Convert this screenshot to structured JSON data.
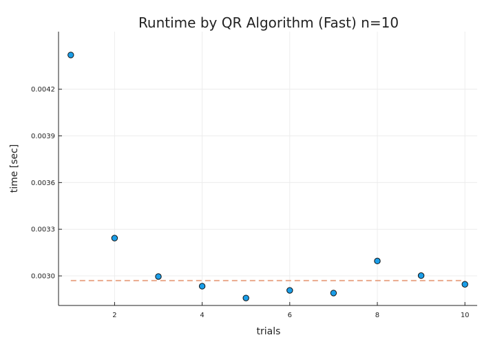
{
  "chart_data": {
    "type": "scatter",
    "title": "Runtime by QR Algorithm (Fast)  n=10",
    "xlabel": "trials",
    "ylabel": "time [sec]",
    "x": [
      1,
      2,
      3,
      4,
      5,
      6,
      7,
      8,
      9,
      10
    ],
    "y": [
      0.00442,
      0.003243,
      0.002996,
      0.002934,
      0.002858,
      0.002907,
      0.00289,
      0.003096,
      0.003002,
      0.002946
    ],
    "xlim": [
      0.72,
      10.28
    ],
    "ylim": [
      0.00281,
      0.00457
    ],
    "xticks": [
      2,
      4,
      6,
      8,
      10
    ],
    "xtick_labels": [
      "2",
      "4",
      "6",
      "8",
      "10"
    ],
    "yticks": [
      0.003,
      0.0033,
      0.0036,
      0.0039,
      0.0042
    ],
    "ytick_labels": [
      "0.0030",
      "0.0033",
      "0.0036",
      "0.0039",
      "0.0042"
    ],
    "mean_line": {
      "x_start": 1,
      "x_end": 10,
      "y": 0.00297
    },
    "grid": true,
    "legend": "none",
    "colors": {
      "points": "#1b9ee8",
      "point_edge": "#111111",
      "mean_line": "#e8a384",
      "grid": "#ececec",
      "axis": "#222222"
    }
  }
}
